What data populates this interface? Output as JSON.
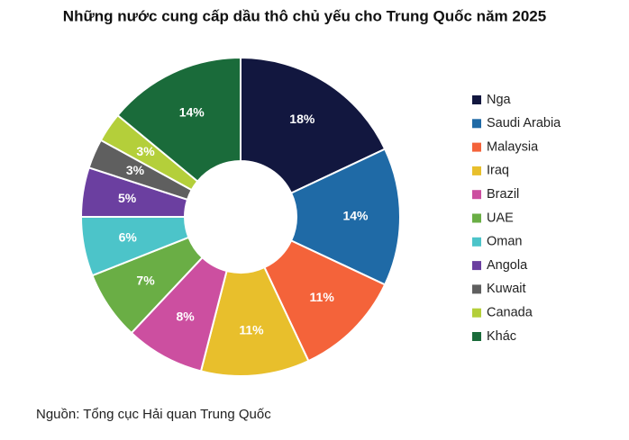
{
  "chart_data": {
    "type": "donut",
    "title": "Những nước cung cấp dầu thô chủ yếu cho Trung Quốc năm 2025",
    "categories": [
      "Nga",
      "Saudi Arabia",
      "Malaysia",
      "Iraq",
      "Brazil",
      "UAE",
      "Oman",
      "Angola",
      "Kuwait",
      "Canada",
      "Khác"
    ],
    "values": [
      18,
      14,
      11,
      11,
      8,
      7,
      6,
      5,
      3,
      3,
      14
    ],
    "value_labels": [
      "18%",
      "14%",
      "11%",
      "11%",
      "8%",
      "7%",
      "6%",
      "5%",
      "3%",
      "3%",
      "14%"
    ],
    "colors": [
      "#12173f",
      "#1f6aa6",
      "#f4633a",
      "#e8bf2c",
      "#cc4fa0",
      "#6aae45",
      "#4cc4c9",
      "#6b3fa0",
      "#5f5f5f",
      "#b4cf3a",
      "#1a6b3a"
    ],
    "legend": "right",
    "source": "Nguồn: Tổng cục Hải quan Trung Quốc"
  }
}
